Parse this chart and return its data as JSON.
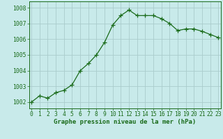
{
  "x": [
    0,
    1,
    2,
    3,
    4,
    5,
    6,
    7,
    8,
    9,
    10,
    11,
    12,
    13,
    14,
    15,
    16,
    17,
    18,
    19,
    20,
    21,
    22,
    23
  ],
  "y": [
    1002.0,
    1002.4,
    1002.25,
    1002.6,
    1002.75,
    1003.1,
    1004.0,
    1004.45,
    1005.0,
    1005.8,
    1006.9,
    1007.5,
    1007.85,
    1007.5,
    1007.5,
    1007.5,
    1007.3,
    1007.0,
    1006.55,
    1006.65,
    1006.65,
    1006.5,
    1006.3,
    1006.1
  ],
  "line_color": "#1a6b1a",
  "marker": "+",
  "marker_size": 4,
  "bg_color": "#c8eaea",
  "grid_color": "#aacccc",
  "xlabel": "Graphe pression niveau de la mer (hPa)",
  "xlabel_fontsize": 6.5,
  "ylabel_ticks": [
    1002,
    1003,
    1004,
    1005,
    1006,
    1007,
    1008
  ],
  "ylim": [
    1001.6,
    1008.4
  ],
  "xlim": [
    -0.3,
    23.3
  ],
  "tick_fontsize": 5.8,
  "figwidth": 3.2,
  "figheight": 2.0,
  "dpi": 100
}
